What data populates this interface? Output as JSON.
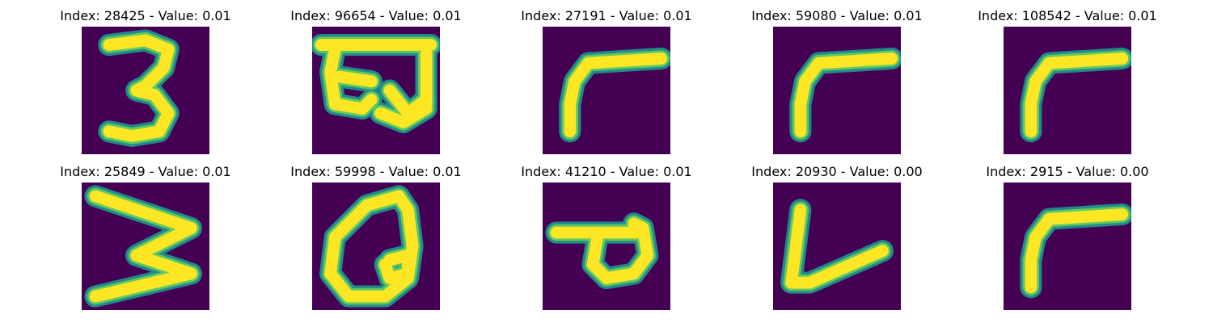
{
  "colors": {
    "background": "#440154",
    "edge": "#21918c",
    "mid": "#5ec962",
    "core": "#fde725"
  },
  "panels": [
    {
      "title": "Index: 28425 - Value: 0.01",
      "glyph": "digit-three"
    },
    {
      "title": "Index: 96654 - Value: 0.01",
      "glyph": "devanagari-kha"
    },
    {
      "title": "Index: 27191 - Value: 0.01",
      "glyph": "angle-bend"
    },
    {
      "title": "Index: 59080 - Value: 0.01",
      "glyph": "angle-bend"
    },
    {
      "title": "Index: 108542 - Value: 0.01",
      "glyph": "angle-bend"
    },
    {
      "title": "Index: 25849 - Value: 0.01",
      "glyph": "zigzag-w"
    },
    {
      "title": "Index: 59998 - Value: 0.01",
      "glyph": "loop-q"
    },
    {
      "title": "Index: 41210 - Value: 0.01",
      "glyph": "loop-p"
    },
    {
      "title": "Index: 20930 - Value: 0.00",
      "glyph": "letter-v"
    },
    {
      "title": "Index: 2915 - Value: 0.00",
      "glyph": "angle-bend"
    }
  ]
}
